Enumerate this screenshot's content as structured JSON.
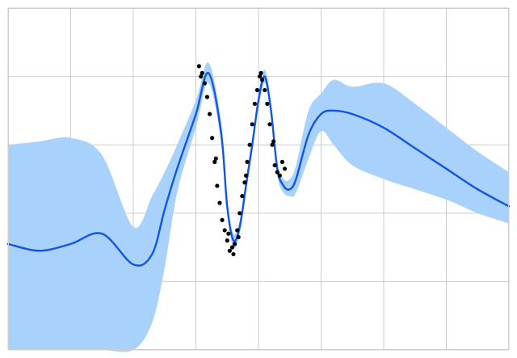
{
  "chart_data": {
    "type": "line",
    "title": "",
    "xlabel": "",
    "ylabel": "",
    "xlim": [
      -4,
      4
    ],
    "ylim": [
      -5,
      5
    ],
    "grid": true,
    "legend": "none",
    "colors": {
      "mean": "#0f55e8",
      "band": "#a8d1fb",
      "points": "#000000",
      "grid": "#cccccc"
    },
    "series": [
      {
        "type": "line",
        "x": [
          -4.0,
          -3.5,
          -3.0,
          -2.5,
          -2.0,
          -1.7,
          -1.5,
          -1.3,
          -1.0,
          -0.8,
          -0.6,
          -0.5,
          -0.4,
          -0.3,
          -0.2,
          -0.1,
          0.0,
          0.1,
          0.2,
          0.3,
          0.4,
          0.5,
          0.6,
          0.8,
          1.0,
          1.2,
          1.5,
          2.0,
          2.5,
          3.0,
          3.5,
          4.0
        ],
        "y": [
          -1.9,
          -2.1,
          -1.9,
          -1.6,
          -2.5,
          -2.2,
          -0.9,
          0.3,
          1.9,
          3.1,
          1.4,
          -0.8,
          -1.8,
          -1.4,
          -0.2,
          1.0,
          2.3,
          3.0,
          2.0,
          0.3,
          -0.2,
          -0.3,
          0.0,
          1.3,
          1.9,
          2.0,
          1.9,
          1.5,
          0.9,
          0.3,
          -0.3,
          -0.8
        ]
      },
      {
        "type": "band",
        "x": [
          -4.0,
          -3.5,
          -3.0,
          -2.5,
          -2.0,
          -1.7,
          -1.5,
          -1.3,
          -1.0,
          -0.8,
          -0.6,
          -0.5,
          -0.4,
          -0.3,
          -0.2,
          -0.1,
          0.0,
          0.1,
          0.2,
          0.3,
          0.4,
          0.5,
          0.6,
          0.8,
          1.0,
          1.2,
          1.5,
          2.0,
          2.5,
          3.0,
          3.5,
          4.0
        ],
        "lower": [
          -5.0,
          -5.0,
          -5.0,
          -5.0,
          -5.0,
          -4.2,
          -2.6,
          -0.4,
          1.5,
          2.8,
          1.1,
          -1.0,
          -2.0,
          -1.6,
          -0.4,
          0.8,
          2.1,
          2.8,
          1.8,
          0.1,
          -0.4,
          -0.5,
          -0.4,
          0.6,
          1.4,
          1.0,
          0.4,
          0.0,
          -0.3,
          -0.6,
          -1.0,
          -1.3
        ],
        "upper": [
          1.0,
          1.1,
          1.2,
          0.7,
          -1.4,
          -0.5,
          0.2,
          1.0,
          2.3,
          3.4,
          1.7,
          -0.6,
          -1.6,
          -1.2,
          0.0,
          1.2,
          2.5,
          3.2,
          2.2,
          0.5,
          0.0,
          0.0,
          0.4,
          2.0,
          2.5,
          2.9,
          2.7,
          2.8,
          2.2,
          1.5,
          0.8,
          0.2
        ]
      },
      {
        "type": "scatter",
        "x": [
          -0.95,
          -0.9,
          -0.86,
          -0.82,
          -0.78,
          -0.74,
          -0.7,
          -0.66,
          -0.62,
          -0.58,
          -0.54,
          -0.5,
          -0.46,
          -0.42,
          -0.38,
          -0.34,
          -0.3,
          -0.26,
          -0.22,
          -0.18,
          -0.14,
          -0.1,
          -0.06,
          -0.02,
          0.02,
          0.06,
          0.1,
          0.14,
          0.18,
          0.22,
          0.26,
          0.3,
          0.34,
          0.38,
          0.42,
          -0.92,
          -0.68,
          -0.48,
          -0.4,
          -0.32,
          -0.2,
          0.04,
          0.24
        ],
        "y": [
          3.3,
          3.1,
          2.8,
          2.4,
          1.9,
          1.2,
          0.5,
          -0.2,
          -0.7,
          -1.2,
          -1.5,
          -1.8,
          -2.1,
          -2.0,
          -1.9,
          -1.5,
          -1.0,
          -0.5,
          -0.1,
          0.5,
          1.0,
          1.6,
          2.2,
          2.6,
          3.0,
          2.9,
          2.6,
          2.2,
          1.6,
          1.0,
          0.4,
          0.2,
          0.1,
          0.5,
          0.3,
          3.0,
          0.6,
          -1.6,
          -2.2,
          -1.7,
          0.1,
          3.1,
          1.1
        ]
      }
    ]
  }
}
